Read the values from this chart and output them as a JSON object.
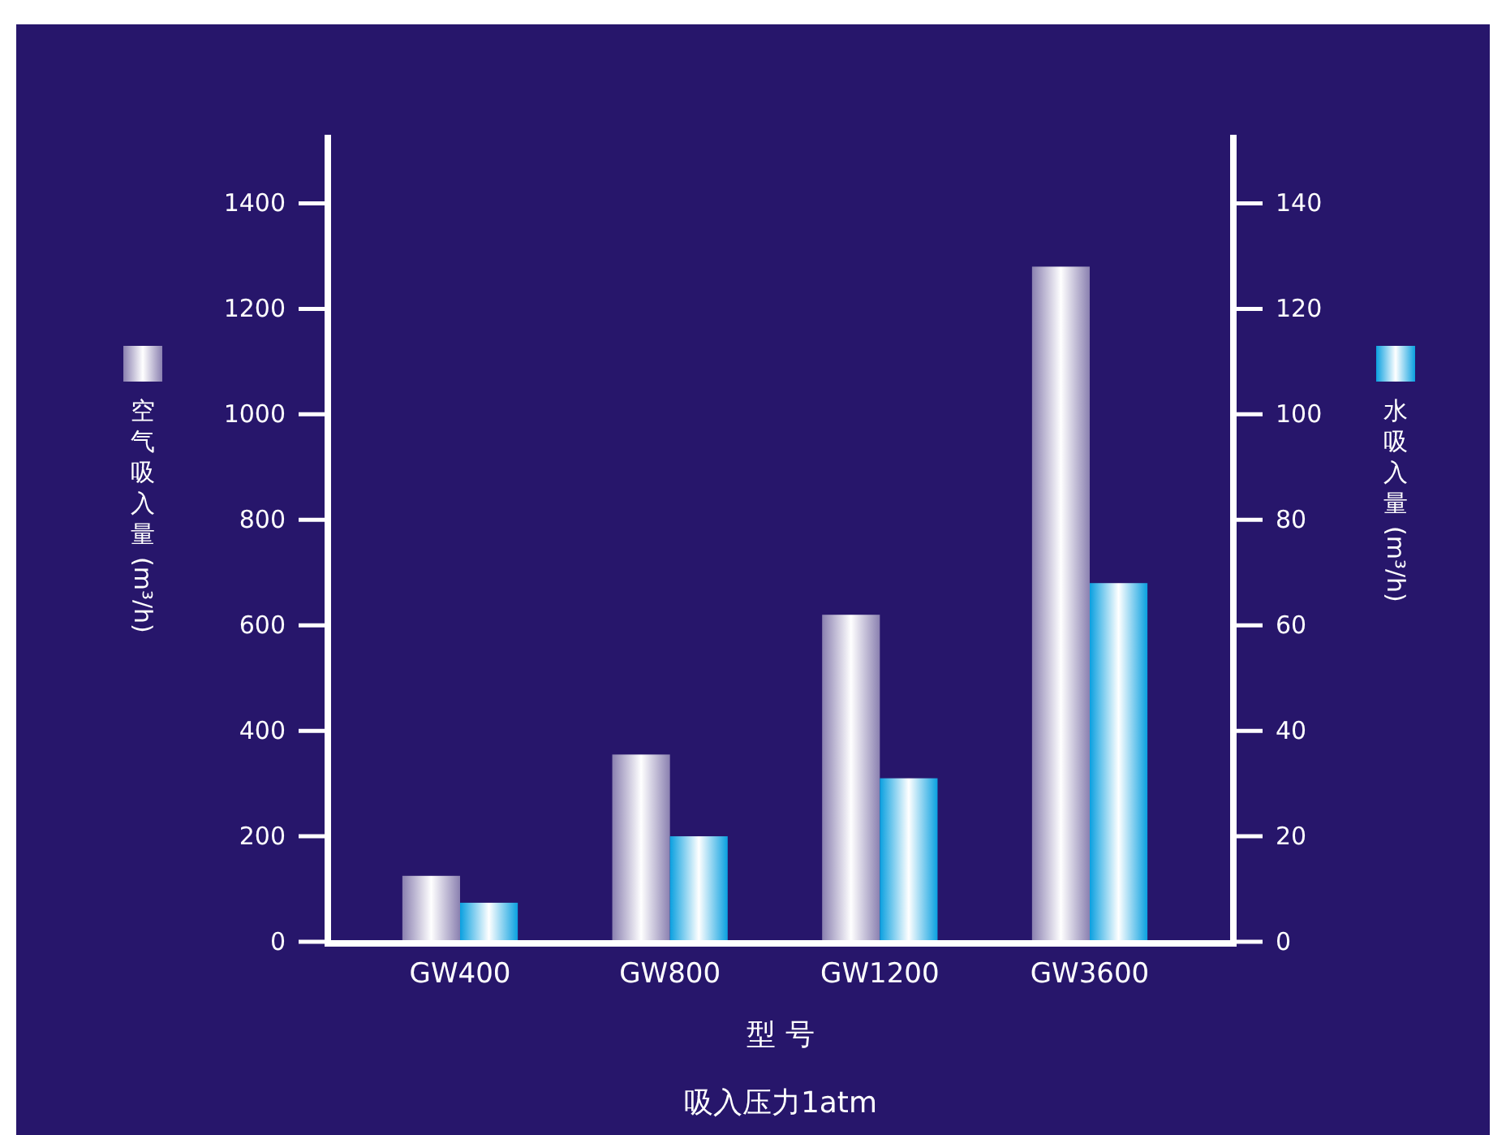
{
  "chart_data": {
    "type": "bar",
    "categories": [
      "GW400",
      "GW800",
      "GW1200",
      "GW3600"
    ],
    "series": [
      {
        "color": "#8a80b0",
        "values": [
          125,
          355,
          620,
          1280
        ]
      },
      {
        "color": "#0aa0e0",
        "values": [
          7.4,
          20,
          31,
          68
        ],
        "axis": "y2"
      }
    ],
    "xlabel": "型 号",
    "ylabel": "空气吸入量(m³/h)",
    "y2label": "水吸入量(m³/h)",
    "annotations": [
      "吸入压力1atm"
    ],
    "ylim": [
      0,
      1530
    ],
    "yticks": [
      0,
      200,
      400,
      600,
      800,
      1000,
      1200,
      1400
    ],
    "y2lim": [
      0,
      153
    ],
    "y2ticks": [
      0,
      20,
      40,
      60,
      80,
      100,
      120,
      140
    ]
  }
}
